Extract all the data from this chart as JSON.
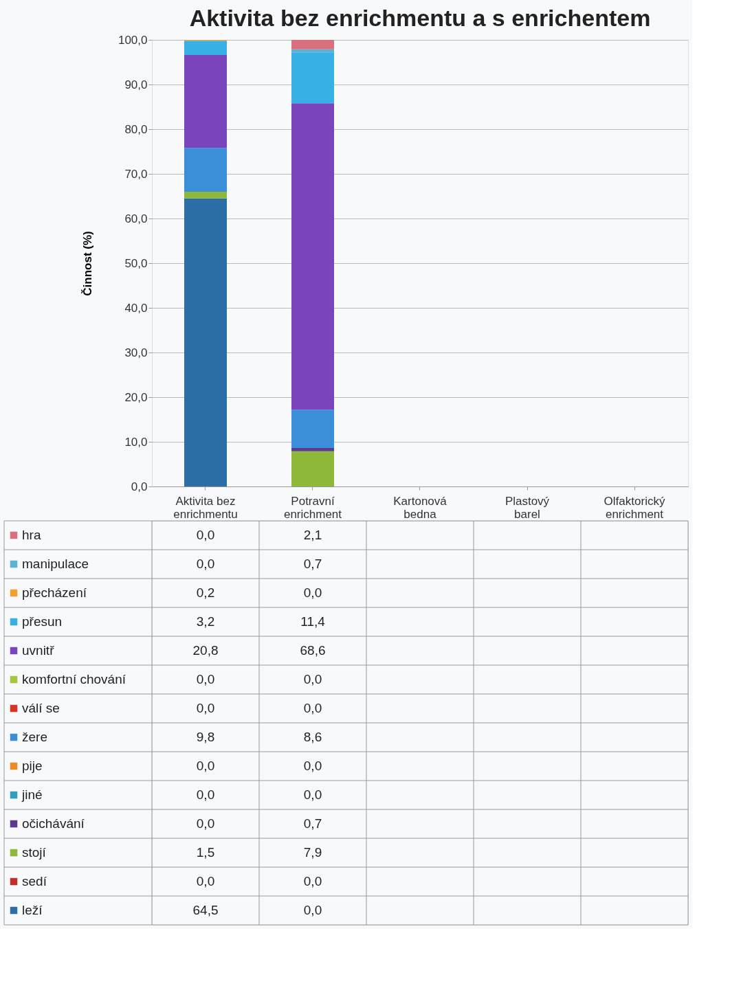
{
  "chart_data": {
    "type": "bar",
    "stacked": true,
    "title": "Aktivita bez enrichmentu a s enrichentem",
    "ylabel": "Činnost (%)",
    "categories": [
      "Aktivita bez enrichmentu",
      "Potravní enrichment",
      "Kartonová bedna",
      "Plastový barel",
      "Olfaktorický enrichment"
    ],
    "ylim": [
      0,
      100
    ],
    "yticks": [
      {
        "value": 0,
        "label": "0,0"
      },
      {
        "value": 10,
        "label": "10,0"
      },
      {
        "value": 20,
        "label": "20,0"
      },
      {
        "value": 30,
        "label": "30,0"
      },
      {
        "value": 40,
        "label": "40,0"
      },
      {
        "value": 50,
        "label": "50,0"
      },
      {
        "value": 60,
        "label": "60,0"
      },
      {
        "value": 70,
        "label": "70,0"
      },
      {
        "value": 80,
        "label": "80,0"
      },
      {
        "value": 90,
        "label": "90,0"
      },
      {
        "value": 100,
        "label": "100,0"
      }
    ],
    "grid": "y",
    "legend": "bottom",
    "series": [
      {
        "name": "leží",
        "color": "#2c6ea6",
        "values": [
          64.5,
          0.0,
          null,
          null,
          null
        ],
        "value_labels": [
          "64,5",
          "0,0",
          null,
          null,
          null
        ]
      },
      {
        "name": "sedí",
        "color": "#c0302a",
        "values": [
          0.0,
          0.0,
          null,
          null,
          null
        ],
        "value_labels": [
          "0,0",
          "0,0",
          null,
          null,
          null
        ]
      },
      {
        "name": "stojí",
        "color": "#8db838",
        "values": [
          1.5,
          7.9,
          null,
          null,
          null
        ],
        "value_labels": [
          "1,5",
          "7,9",
          null,
          null,
          null
        ]
      },
      {
        "name": "očichávání",
        "color": "#5b3a8e",
        "values": [
          0.0,
          0.7,
          null,
          null,
          null
        ],
        "value_labels": [
          "0,0",
          "0,7",
          null,
          null,
          null
        ]
      },
      {
        "name": "jiné",
        "color": "#2f9fc0",
        "values": [
          0.0,
          0.0,
          null,
          null,
          null
        ],
        "value_labels": [
          "0,0",
          "0,0",
          null,
          null,
          null
        ]
      },
      {
        "name": "pije",
        "color": "#f08a24",
        "values": [
          0.0,
          0.0,
          null,
          null,
          null
        ],
        "value_labels": [
          "0,0",
          "0,0",
          null,
          null,
          null
        ]
      },
      {
        "name": "žere",
        "color": "#3a8fd8",
        "values": [
          9.8,
          8.6,
          null,
          null,
          null
        ],
        "value_labels": [
          "9,8",
          "8,6",
          null,
          null,
          null
        ]
      },
      {
        "name": "válí se",
        "color": "#d83426",
        "values": [
          0.0,
          0.0,
          null,
          null,
          null
        ],
        "value_labels": [
          "0,0",
          "0,0",
          null,
          null,
          null
        ]
      },
      {
        "name": "komfortní chování",
        "color": "#a4c83a",
        "values": [
          0.0,
          0.0,
          null,
          null,
          null
        ],
        "value_labels": [
          "0,0",
          "0,0",
          null,
          null,
          null
        ]
      },
      {
        "name": "uvnitř",
        "color": "#7a44bc",
        "values": [
          20.8,
          68.6,
          null,
          null,
          null
        ],
        "value_labels": [
          "20,8",
          "68,6",
          null,
          null,
          null
        ]
      },
      {
        "name": "přesun",
        "color": "#38b0e6",
        "values": [
          3.2,
          11.4,
          null,
          null,
          null
        ],
        "value_labels": [
          "3,2",
          "11,4",
          null,
          null,
          null
        ]
      },
      {
        "name": "přecházení",
        "color": "#f3a030",
        "values": [
          0.2,
          0.0,
          null,
          null,
          null
        ],
        "value_labels": [
          "0,2",
          "0,0",
          null,
          null,
          null
        ]
      },
      {
        "name": "manipulace",
        "color": "#5cb4d4",
        "values": [
          0.0,
          0.7,
          null,
          null,
          null
        ],
        "value_labels": [
          "0,0",
          "0,7",
          null,
          null,
          null
        ]
      },
      {
        "name": "hra",
        "color": "#d8707e",
        "values": [
          0.0,
          2.1,
          null,
          null,
          null
        ],
        "value_labels": [
          "0,0",
          "2,1",
          null,
          null,
          null
        ]
      }
    ]
  }
}
